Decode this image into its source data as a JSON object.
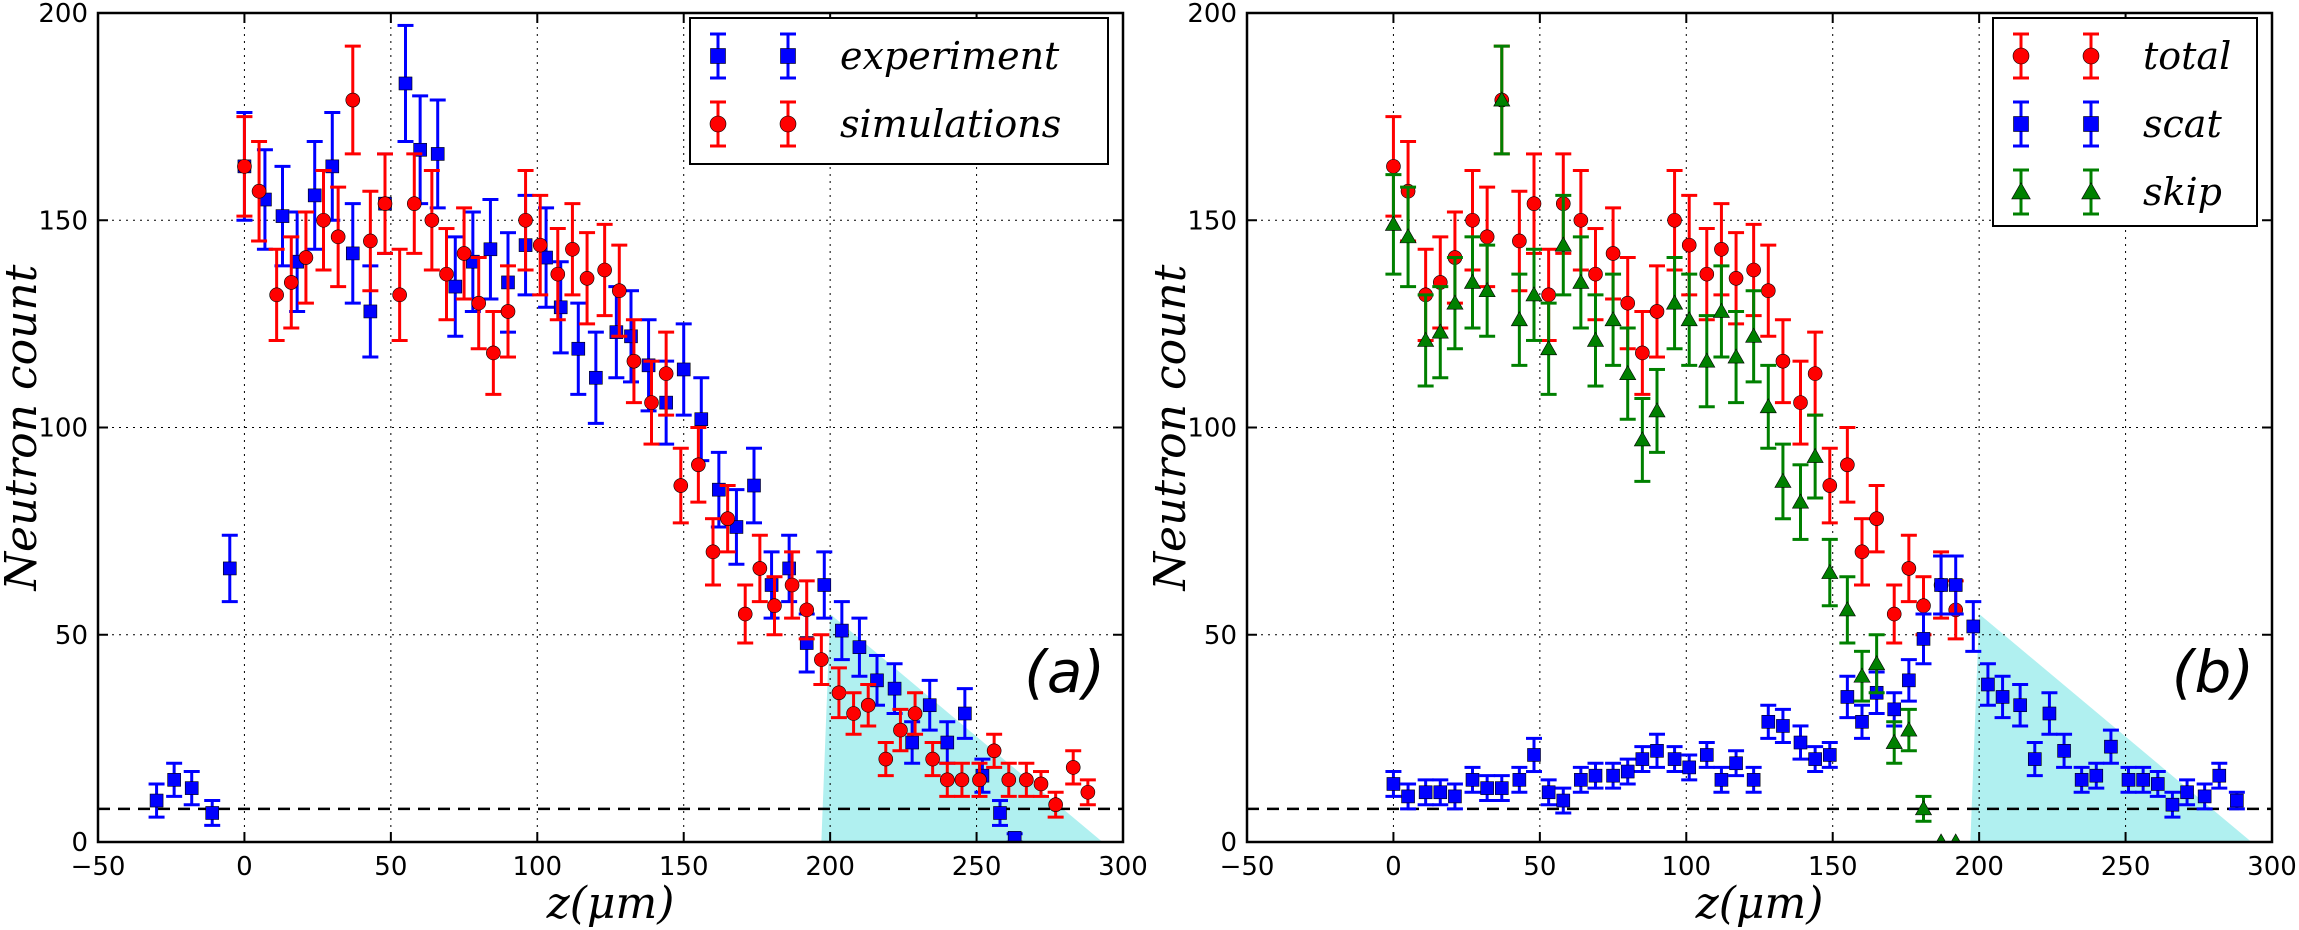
{
  "chart_data": [
    {
      "type": "scatter",
      "panel_label": "(a)",
      "xlabel": "z(μm)",
      "ylabel": "Neutron count",
      "xlim": [
        -50,
        300
      ],
      "ylim": [
        0,
        200
      ],
      "xticks": [
        -50,
        0,
        50,
        100,
        150,
        200,
        250,
        300
      ],
      "yticks": [
        0,
        50,
        100,
        150,
        200
      ],
      "grid": true,
      "legend_position": "top-right",
      "reference_line_y": 8,
      "shaded_region": {
        "x": [
          197,
          200,
          293
        ],
        "y": [
          0,
          55,
          0
        ],
        "color": "#b0f0f0"
      },
      "series": [
        {
          "name": "experiment",
          "marker": "square",
          "color": "#0000ff",
          "x": [
            -30,
            -24,
            -18,
            -11,
            -5,
            0,
            7,
            13,
            18,
            24,
            30,
            37,
            43,
            48,
            55,
            60,
            66,
            72,
            78,
            84,
            90,
            96,
            103,
            108,
            114,
            120,
            127,
            132,
            138,
            144,
            150,
            156,
            162,
            168,
            174,
            180,
            186,
            192,
            198,
            204,
            210,
            216,
            222,
            228,
            234,
            240,
            246,
            252,
            258,
            263
          ],
          "y": [
            10,
            15,
            13,
            7,
            66,
            163,
            155,
            151,
            140,
            156,
            163,
            142,
            128,
            154,
            183,
            167,
            166,
            134,
            140,
            143,
            135,
            144,
            141,
            129,
            119,
            112,
            123,
            122,
            115,
            106,
            114,
            102,
            85,
            76,
            86,
            62,
            66,
            48,
            62,
            51,
            47,
            39,
            37,
            24,
            33,
            24,
            31,
            16,
            7,
            1
          ],
          "err": [
            4,
            4,
            4,
            3,
            8,
            13,
            12,
            12,
            12,
            13,
            13,
            12,
            11,
            12,
            14,
            13,
            13,
            12,
            12,
            12,
            12,
            12,
            12,
            11,
            11,
            11,
            11,
            11,
            11,
            10,
            11,
            10,
            9,
            9,
            9,
            8,
            8,
            7,
            8,
            7,
            7,
            6,
            6,
            5,
            6,
            5,
            6,
            4,
            3,
            1
          ]
        },
        {
          "name": "simulations",
          "marker": "circle",
          "color": "#ff0000",
          "x": [
            0,
            5,
            11,
            16,
            21,
            27,
            32,
            37,
            43,
            48,
            53,
            58,
            64,
            69,
            75,
            80,
            85,
            90,
            96,
            101,
            107,
            112,
            117,
            123,
            128,
            133,
            139,
            144,
            149,
            155,
            160,
            165,
            171,
            176,
            181,
            187,
            192,
            197,
            203,
            208,
            213,
            219,
            224,
            229,
            235,
            240,
            245,
            251,
            256,
            261,
            267,
            272,
            277,
            283,
            288
          ],
          "y": [
            163,
            157,
            132,
            135,
            141,
            150,
            146,
            179,
            145,
            154,
            132,
            154,
            150,
            137,
            142,
            130,
            118,
            128,
            150,
            144,
            137,
            143,
            136,
            138,
            133,
            116,
            106,
            113,
            86,
            91,
            70,
            78,
            55,
            66,
            57,
            62,
            56,
            44,
            36,
            31,
            33,
            20,
            27,
            31,
            20,
            15,
            15,
            15,
            22,
            15,
            15,
            14,
            9,
            18,
            12
          ],
          "err": [
            12,
            12,
            11,
            11,
            11,
            12,
            12,
            13,
            12,
            12,
            11,
            12,
            12,
            11,
            11,
            11,
            10,
            11,
            12,
            12,
            11,
            11,
            11,
            11,
            11,
            10,
            10,
            10,
            9,
            9,
            8,
            8,
            7,
            8,
            7,
            8,
            7,
            6,
            6,
            5,
            5,
            4,
            5,
            5,
            4,
            4,
            4,
            4,
            4,
            4,
            4,
            3,
            3,
            4,
            3
          ]
        }
      ]
    },
    {
      "type": "scatter",
      "panel_label": "(b)",
      "xlabel": "z(μm)",
      "ylabel": "Neutron count",
      "xlim": [
        -50,
        300
      ],
      "ylim": [
        0,
        200
      ],
      "xticks": [
        -50,
        0,
        50,
        100,
        150,
        200,
        250,
        300
      ],
      "yticks": [
        0,
        50,
        100,
        150,
        200
      ],
      "grid": true,
      "legend_position": "top-right",
      "reference_line_y": 8,
      "shaded_region": {
        "x": [
          197,
          200,
          293
        ],
        "y": [
          0,
          55,
          0
        ],
        "color": "#b0f0f0"
      },
      "series": [
        {
          "name": "total",
          "marker": "circle",
          "color": "#ff0000",
          "x": [
            0,
            5,
            11,
            16,
            21,
            27,
            32,
            37,
            43,
            48,
            53,
            58,
            64,
            69,
            75,
            80,
            85,
            90,
            96,
            101,
            107,
            112,
            117,
            123,
            128,
            133,
            139,
            144,
            149,
            155,
            160,
            165,
            171,
            176,
            181,
            187,
            192
          ],
          "y": [
            163,
            157,
            132,
            135,
            141,
            150,
            146,
            179,
            145,
            154,
            132,
            154,
            150,
            137,
            142,
            130,
            118,
            128,
            150,
            144,
            137,
            143,
            136,
            138,
            133,
            116,
            106,
            113,
            86,
            91,
            70,
            78,
            55,
            66,
            57,
            62,
            56
          ],
          "err": [
            12,
            12,
            11,
            11,
            11,
            12,
            12,
            13,
            12,
            12,
            11,
            12,
            12,
            11,
            11,
            11,
            10,
            11,
            12,
            12,
            11,
            11,
            11,
            11,
            11,
            10,
            10,
            10,
            9,
            9,
            8,
            8,
            7,
            8,
            7,
            8,
            7
          ]
        },
        {
          "name": "scat",
          "marker": "square",
          "color": "#0000ff",
          "x": [
            0,
            5,
            11,
            16,
            21,
            27,
            32,
            37,
            43,
            48,
            53,
            58,
            64,
            69,
            75,
            80,
            85,
            90,
            96,
            101,
            107,
            112,
            117,
            123,
            128,
            133,
            139,
            144,
            149,
            155,
            160,
            165,
            171,
            176,
            181,
            187,
            192,
            198,
            203,
            208,
            214,
            219,
            224,
            229,
            235,
            240,
            245,
            251,
            256,
            261,
            266,
            271,
            277,
            282,
            288
          ],
          "y": [
            14,
            11,
            12,
            12,
            11,
            15,
            13,
            13,
            15,
            21,
            12,
            10,
            15,
            16,
            16,
            17,
            20,
            22,
            20,
            18,
            21,
            15,
            19,
            15,
            29,
            28,
            24,
            20,
            21,
            35,
            29,
            36,
            32,
            39,
            49,
            62,
            62,
            52,
            38,
            35,
            33,
            20,
            31,
            22,
            15,
            16,
            23,
            15,
            15,
            14,
            9,
            12,
            11,
            16,
            10
          ],
          "err": [
            3,
            3,
            3,
            3,
            3,
            3,
            3,
            3,
            3,
            4,
            3,
            3,
            3,
            3,
            3,
            3,
            3,
            4,
            3,
            3,
            3,
            3,
            3,
            3,
            4,
            4,
            4,
            3,
            3,
            5,
            4,
            5,
            4,
            5,
            6,
            7,
            7,
            6,
            5,
            5,
            5,
            4,
            5,
            4,
            3,
            3,
            4,
            3,
            3,
            3,
            3,
            3,
            3,
            3,
            2
          ]
        },
        {
          "name": "skip",
          "marker": "triangle",
          "color": "#008000",
          "x": [
            0,
            5,
            11,
            16,
            21,
            27,
            32,
            37,
            43,
            48,
            53,
            58,
            64,
            69,
            75,
            80,
            85,
            90,
            96,
            101,
            107,
            112,
            117,
            123,
            128,
            133,
            139,
            144,
            149,
            155,
            160,
            165,
            171,
            176,
            181,
            187,
            192
          ],
          "y": [
            149,
            146,
            121,
            123,
            130,
            135,
            133,
            179,
            126,
            132,
            119,
            144,
            135,
            121,
            126,
            113,
            97,
            104,
            130,
            126,
            116,
            128,
            117,
            122,
            105,
            87,
            82,
            93,
            65,
            56,
            40,
            43,
            24,
            27,
            8,
            0,
            0
          ],
          "err": [
            12,
            12,
            11,
            11,
            11,
            11,
            11,
            13,
            11,
            11,
            11,
            12,
            11,
            11,
            11,
            11,
            10,
            10,
            11,
            11,
            11,
            11,
            11,
            11,
            10,
            9,
            9,
            10,
            8,
            8,
            6,
            7,
            5,
            5,
            3,
            0,
            0
          ]
        }
      ]
    }
  ]
}
